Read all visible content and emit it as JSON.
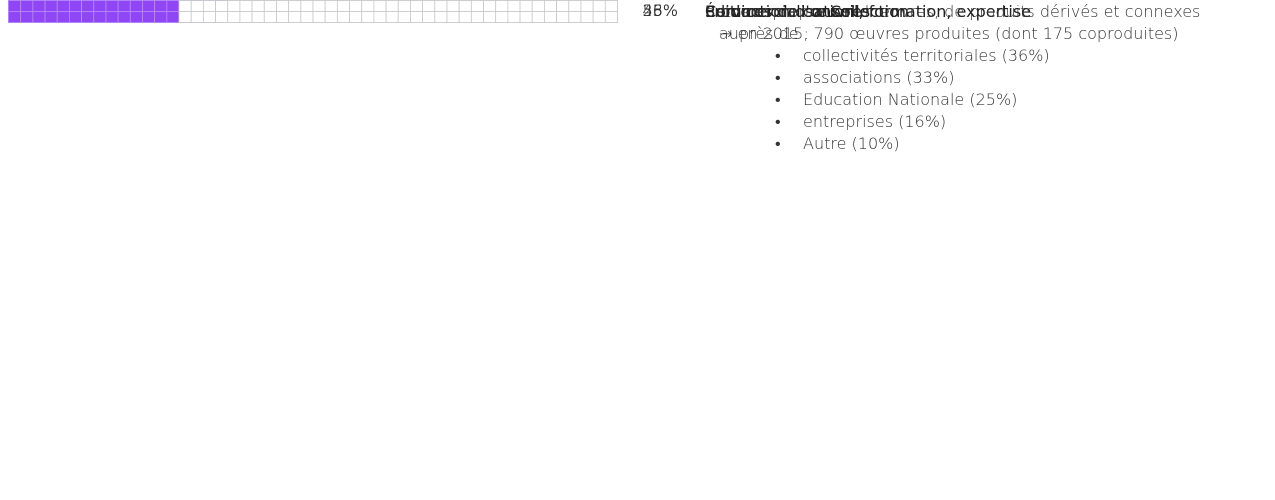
{
  "chart_data": {
    "type": "waffle",
    "categories": [
      "Production d'œuvres",
      "Édition",
      "Services de conseil, formation, expertise",
      "Commercialisation",
      "Collection"
    ],
    "label_before": [
      null,
      null,
      null,
      null,
      "ont leur propre "
    ],
    "label_after": [
      null,
      null,
      null,
      " d'œuvres,  de produits dérivés et connexes",
      null
    ],
    "values": [
      56,
      56,
      43,
      35,
      28
    ],
    "value_labels": [
      "56%",
      "56%",
      "43%",
      "35%",
      "28%"
    ],
    "notes": [
      "→ en 2015, 790 œuvres produites (dont 175 coproduites)",
      null,
      "auprès de :",
      null,
      null
    ],
    "sublists": [
      null,
      null,
      [
        "collectivités territoriales (36%)",
        "associations (33%)",
        "Education Nationale (25%)",
        "entreprises (16%)",
        "Autre (10%)"
      ],
      null,
      null
    ],
    "total": 100,
    "color": "#9146f5"
  }
}
